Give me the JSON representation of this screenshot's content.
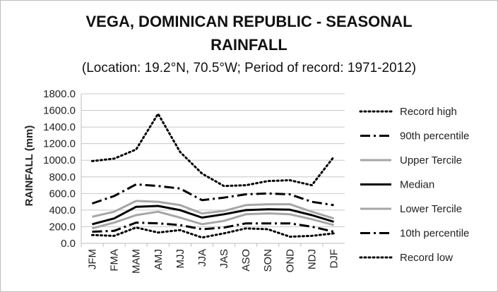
{
  "chart_data": {
    "type": "line",
    "title": "VEGA, DOMINICAN REPUBLIC - SEASONAL",
    "title_line2": "RAINFALL",
    "subtitle": "(Location: 19.2°N, 70.5°W; Period of record: 1971-2012)",
    "ylabel": "RAINFALL (mm)",
    "xlabel": "",
    "ylim": [
      0,
      1800
    ],
    "yticks": [
      "0.0",
      "200.0",
      "400.0",
      "600.0",
      "800.0",
      "1000.0",
      "1200.0",
      "1400.0",
      "1600.0",
      "1800.0"
    ],
    "grid": true,
    "legend_position": "right",
    "categories": [
      "JFM",
      "FMA",
      "MAM",
      "AMJ",
      "MJJ",
      "JJA",
      "JAS",
      "ASO",
      "SON",
      "OND",
      "NDJ",
      "DJF"
    ],
    "series": [
      {
        "name": "Record high",
        "style": "dotted",
        "color": "#000000",
        "values": [
          990,
          1020,
          1130,
          1560,
          1100,
          840,
          690,
          700,
          750,
          760,
          700,
          1040
        ]
      },
      {
        "name": "90th percentile",
        "style": "dashdot",
        "color": "#000000",
        "values": [
          480,
          570,
          710,
          690,
          660,
          520,
          550,
          590,
          600,
          590,
          500,
          460
        ]
      },
      {
        "name": "Upper Tercile",
        "style": "solid",
        "color": "#a6a6a6",
        "values": [
          320,
          380,
          510,
          500,
          460,
          360,
          390,
          460,
          470,
          470,
          380,
          300
        ]
      },
      {
        "name": "Median",
        "style": "solid",
        "color": "#000000",
        "values": [
          230,
          300,
          440,
          450,
          400,
          310,
          350,
          400,
          410,
          405,
          340,
          260
        ]
      },
      {
        "name": "Lower Tercile",
        "style": "solid",
        "color": "#a6a6a6",
        "values": [
          180,
          250,
          340,
          380,
          310,
          230,
          270,
          350,
          360,
          350,
          290,
          220
        ]
      },
      {
        "name": "10th percentile",
        "style": "dashdot",
        "color": "#000000",
        "values": [
          140,
          150,
          250,
          240,
          220,
          170,
          190,
          240,
          240,
          240,
          200,
          140
        ]
      },
      {
        "name": "Record low",
        "style": "dotted",
        "color": "#000000",
        "values": [
          100,
          90,
          190,
          130,
          160,
          70,
          120,
          180,
          170,
          80,
          90,
          120
        ]
      }
    ]
  }
}
